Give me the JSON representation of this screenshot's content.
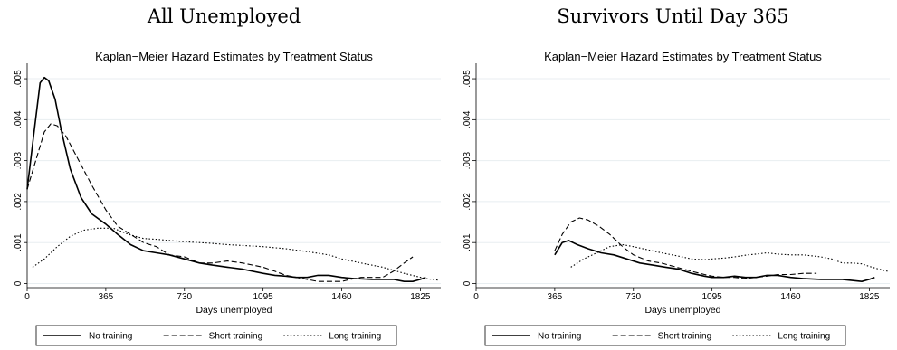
{
  "chart_data": [
    {
      "type": "line",
      "panel_title": "All Unemployed",
      "title": "Kaplan−Meier Hazard Estimates by Treatment Status",
      "xlabel": "Days unemployed",
      "ylabel": "",
      "xlim": [
        0,
        1920
      ],
      "ylim": [
        -0.0001,
        0.0052
      ],
      "xticks": [
        0,
        365,
        730,
        1095,
        1460,
        1825
      ],
      "yticks": [
        0,
        0.001,
        0.002,
        0.003,
        0.004,
        0.005
      ],
      "ytick_labels": [
        "0",
        ".001",
        ".002",
        ".003",
        ".004",
        ".005"
      ],
      "grid": "horizontal",
      "legend": "bottom",
      "series": [
        {
          "name": "No training",
          "style": "solid",
          "x": [
            0,
            30,
            60,
            80,
            100,
            130,
            160,
            200,
            250,
            300,
            365,
            420,
            480,
            540,
            600,
            660,
            730,
            800,
            860,
            930,
            1000,
            1095,
            1150,
            1200,
            1250,
            1300,
            1350,
            1400,
            1460,
            1520,
            1600,
            1700,
            1750,
            1790,
            1825,
            1850
          ],
          "y": [
            0.0023,
            0.0036,
            0.0049,
            0.00503,
            0.00495,
            0.0045,
            0.0037,
            0.0028,
            0.0021,
            0.0017,
            0.00145,
            0.0012,
            0.00095,
            0.0008,
            0.00075,
            0.0007,
            0.0006,
            0.0005,
            0.00045,
            0.0004,
            0.00035,
            0.00025,
            0.0002,
            0.00018,
            0.00015,
            0.00015,
            0.0002,
            0.0002,
            0.00015,
            0.00012,
            0.0001,
            0.0001,
            5e-05,
            5e-05,
            0.0001,
            0.00015
          ]
        },
        {
          "name": "Short training",
          "style": "dashed",
          "x": [
            0,
            40,
            80,
            110,
            140,
            180,
            240,
            300,
            365,
            420,
            480,
            540,
            600,
            660,
            730,
            800,
            860,
            930,
            1000,
            1095,
            1150,
            1200,
            1250,
            1300,
            1350,
            1400,
            1460,
            1500,
            1550,
            1600,
            1650,
            1700,
            1750,
            1790
          ],
          "y": [
            0.0023,
            0.003,
            0.0037,
            0.0039,
            0.00385,
            0.0036,
            0.003,
            0.0024,
            0.0018,
            0.0014,
            0.0012,
            0.001,
            0.0009,
            0.0007,
            0.00065,
            0.0005,
            0.0005,
            0.00055,
            0.0005,
            0.0004,
            0.0003,
            0.0002,
            0.00015,
            0.0001,
            5e-05,
            5e-05,
            5e-05,
            0.0001,
            0.00015,
            0.00015,
            0.00015,
            0.0003,
            0.0005,
            0.00065
          ]
        },
        {
          "name": "Long training",
          "style": "dotted",
          "x": [
            25,
            80,
            140,
            200,
            260,
            330,
            400,
            470,
            540,
            600,
            660,
            730,
            800,
            860,
            930,
            1000,
            1095,
            1200,
            1300,
            1400,
            1460,
            1550,
            1650,
            1750,
            1850,
            1910
          ],
          "y": [
            0.0004,
            0.0006,
            0.0009,
            0.00115,
            0.0013,
            0.00135,
            0.00135,
            0.0012,
            0.0011,
            0.00108,
            0.00105,
            0.00102,
            0.001,
            0.00098,
            0.00095,
            0.00093,
            0.0009,
            0.00085,
            0.00078,
            0.0007,
            0.0006,
            0.0005,
            0.0004,
            0.00025,
            0.00012,
            8e-05
          ]
        }
      ]
    },
    {
      "type": "line",
      "panel_title": "Survivors Until Day 365",
      "title": "Kaplan−Meier Hazard Estimates by Treatment Status",
      "xlabel": "Days unemployed",
      "ylabel": "",
      "xlim": [
        0,
        1920
      ],
      "ylim": [
        -0.0001,
        0.0052
      ],
      "xticks": [
        0,
        365,
        730,
        1095,
        1460,
        1825
      ],
      "yticks": [
        0,
        0.001,
        0.002,
        0.003,
        0.004,
        0.005
      ],
      "ytick_labels": [
        "0",
        ".001",
        ".002",
        ".003",
        ".004",
        ".005"
      ],
      "grid": "horizontal",
      "legend": "bottom",
      "series": [
        {
          "name": "No training",
          "style": "solid",
          "x": [
            365,
            400,
            430,
            470,
            520,
            580,
            640,
            700,
            760,
            820,
            880,
            940,
            1000,
            1060,
            1095,
            1150,
            1200,
            1250,
            1300,
            1350,
            1400,
            1460,
            1520,
            1600,
            1700,
            1790,
            1825,
            1850
          ],
          "y": [
            0.0007,
            0.001,
            0.00105,
            0.00095,
            0.00085,
            0.00075,
            0.0007,
            0.0006,
            0.0005,
            0.00045,
            0.0004,
            0.00035,
            0.00025,
            0.00018,
            0.00015,
            0.00015,
            0.00018,
            0.00015,
            0.00015,
            0.0002,
            0.0002,
            0.00015,
            0.00012,
            0.0001,
            0.0001,
            5e-05,
            0.0001,
            0.00015
          ]
        },
        {
          "name": "Short training",
          "style": "dashed",
          "x": [
            365,
            400,
            440,
            480,
            520,
            570,
            620,
            680,
            730,
            800,
            860,
            930,
            1000,
            1060,
            1095,
            1150,
            1200,
            1250,
            1300,
            1350,
            1400,
            1460,
            1520,
            1580
          ],
          "y": [
            0.0008,
            0.0012,
            0.0015,
            0.0016,
            0.00155,
            0.0014,
            0.0012,
            0.0009,
            0.0007,
            0.00055,
            0.0005,
            0.0004,
            0.0003,
            0.00022,
            0.00018,
            0.00015,
            0.00015,
            0.00012,
            0.00015,
            0.00018,
            0.00022,
            0.00022,
            0.00025,
            0.00025
          ]
        },
        {
          "name": "Long training",
          "style": "dotted",
          "x": [
            440,
            500,
            560,
            620,
            680,
            730,
            800,
            860,
            930,
            1000,
            1060,
            1095,
            1150,
            1200,
            1260,
            1300,
            1350,
            1400,
            1460,
            1520,
            1600,
            1650,
            1700,
            1750,
            1790,
            1825,
            1870,
            1910
          ],
          "y": [
            0.0004,
            0.0006,
            0.00075,
            0.0009,
            0.00095,
            0.0009,
            0.00082,
            0.00075,
            0.00068,
            0.0006,
            0.00058,
            0.0006,
            0.00062,
            0.00065,
            0.0007,
            0.00072,
            0.00075,
            0.00072,
            0.0007,
            0.0007,
            0.00065,
            0.0006,
            0.0005,
            0.0005,
            0.00048,
            0.00042,
            0.00035,
            0.0003
          ]
        }
      ]
    }
  ]
}
